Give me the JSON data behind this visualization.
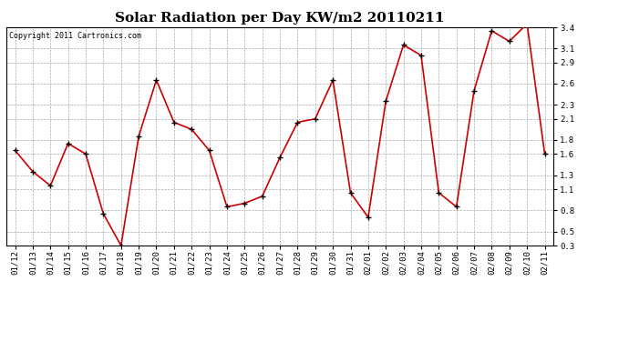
{
  "title": "Solar Radiation per Day KW/m2 20110211",
  "copyright": "Copyright 2011 Cartronics.com",
  "dates": [
    "01/12",
    "01/13",
    "01/14",
    "01/15",
    "01/16",
    "01/17",
    "01/18",
    "01/19",
    "01/20",
    "01/21",
    "01/22",
    "01/23",
    "01/24",
    "01/25",
    "01/26",
    "01/27",
    "01/28",
    "01/29",
    "01/30",
    "01/31",
    "02/01",
    "02/02",
    "02/03",
    "02/04",
    "02/05",
    "02/06",
    "02/07",
    "02/08",
    "02/09",
    "02/10",
    "02/11"
  ],
  "values": [
    1.65,
    1.35,
    1.15,
    1.75,
    1.6,
    0.75,
    0.3,
    1.85,
    2.65,
    2.05,
    1.95,
    1.65,
    0.85,
    0.9,
    1.0,
    1.55,
    2.05,
    2.1,
    2.65,
    1.05,
    0.7,
    2.35,
    3.15,
    3.0,
    1.05,
    0.85,
    2.5,
    3.35,
    3.2,
    3.45,
    1.6
  ],
  "line_color": "#cc0000",
  "marker_color": "#000000",
  "bg_color": "#ffffff",
  "plot_bg_color": "#ffffff",
  "grid_color": "#aaaaaa",
  "title_fontsize": 11,
  "tick_fontsize": 6.5,
  "copyright_fontsize": 6,
  "ylim": [
    0.3,
    3.4
  ],
  "yticks": [
    0.3,
    0.5,
    0.8,
    1.1,
    1.3,
    1.6,
    1.8,
    2.1,
    2.3,
    2.6,
    2.9,
    3.1,
    3.4
  ]
}
